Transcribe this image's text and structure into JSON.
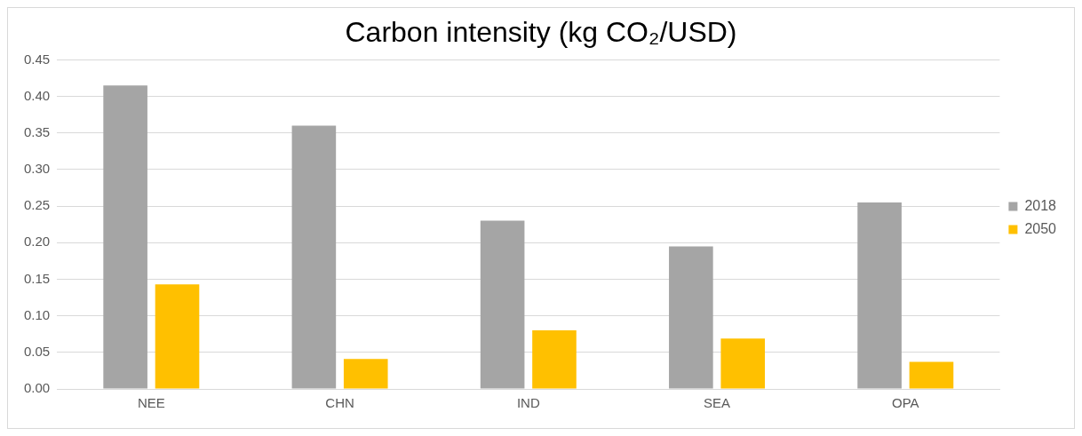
{
  "chart_data": {
    "type": "bar",
    "title": "Carbon intensity (kg CO₂/USD)",
    "categories": [
      "NEE",
      "CHN",
      "IND",
      "SEA",
      "OPA"
    ],
    "series": [
      {
        "name": "2018",
        "color": "#a5a5a5",
        "values": [
          0.415,
          0.36,
          0.23,
          0.195,
          0.255
        ]
      },
      {
        "name": "2050",
        "color": "#ffc000",
        "values": [
          0.143,
          0.041,
          0.08,
          0.069,
          0.037
        ]
      }
    ],
    "ylim": [
      0,
      0.45
    ],
    "yticks": [
      {
        "value": 0,
        "label": "0.00"
      },
      {
        "value": 0.05,
        "label": "0.05"
      },
      {
        "value": 0.1,
        "label": "0.10"
      },
      {
        "value": 0.15,
        "label": "0.15"
      },
      {
        "value": 0.2,
        "label": "0.20"
      },
      {
        "value": 0.25,
        "label": "0.25"
      },
      {
        "value": 0.3,
        "label": "0.30"
      },
      {
        "value": 0.35,
        "label": "0.35"
      },
      {
        "value": 0.4,
        "label": "0.40"
      },
      {
        "value": 0.45,
        "label": "0.45"
      }
    ],
    "grid": "y",
    "legend": "right"
  }
}
